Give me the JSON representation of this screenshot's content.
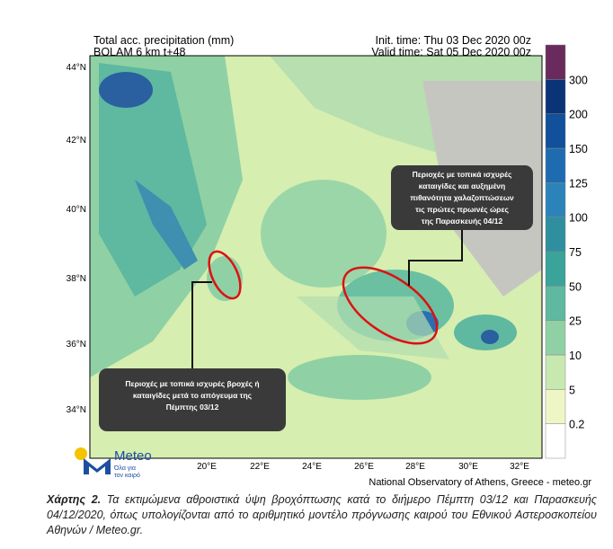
{
  "header": {
    "title_left": [
      "Total acc. precipitation (mm)",
      "BOLAM 6 km t+48"
    ],
    "title_right": [
      "Init. time: Thu 03 Dec 2020 00z",
      "Valid time: Sat 05 Dec 2020 00z"
    ]
  },
  "map": {
    "lat_labels": [
      "44°N",
      "42°N",
      "40°N",
      "38°N",
      "36°N",
      "34°N"
    ],
    "lon_labels": [
      "20°E",
      "22°E",
      "24°E",
      "26°E",
      "28°E",
      "30°E",
      "32°E"
    ]
  },
  "colorbar": {
    "labels": [
      0.2,
      5,
      10,
      25,
      50,
      75,
      100,
      125,
      150,
      200,
      300
    ]
  },
  "callouts": [
    {
      "lines": [
        "Περιοχές με τοπικά ισχυρές",
        "καταιγίδες και αυξημένη",
        "πιθανότητα χαλαζοπτώσεων",
        "τις πρώτες πρωινές ώρες",
        "της Παρασκευής 04/12"
      ]
    },
    {
      "lines": [
        "Περιοχές με τοπικά ισχυρές βροχές ή",
        "καταιγίδες μετά το απόγευμα της",
        "Πέμπτης 03/12"
      ]
    }
  ],
  "logo": {
    "name": "Meteo",
    "tagline": [
      "Όλα για",
      "τον καιρό"
    ]
  },
  "credit": "National Observatory of Athens, Greece - meteo.gr",
  "caption": {
    "label": "Χάρτης 2.",
    "text": "Τα εκτιμώμενα αθροιστικά ύψη βροχόπτωσης κατά το διήμερο Πέμπτη 03/12 και Παρασκευής 04/12/2020, όπως υπολογίζονται από το αριθμητικό μοντέλο πρόγνωσης καιρού του Εθνικού Αστεροσκοπείου Αθηνών / Meteo.gr."
  }
}
